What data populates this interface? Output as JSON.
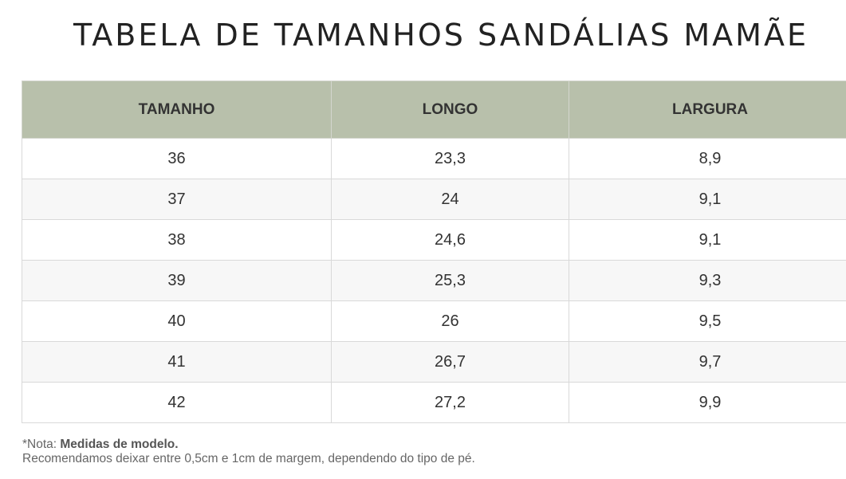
{
  "title": "TABELA DE TAMANHOS SANDÁLIAS MAMÃE",
  "table": {
    "headers": [
      "TAMANHO",
      "LONGO",
      "LARGURA"
    ],
    "rows": [
      [
        "36",
        "23,3",
        "8,9"
      ],
      [
        "37",
        "24",
        "9,1"
      ],
      [
        "38",
        "24,6",
        "9,1"
      ],
      [
        "39",
        "25,3",
        "9,3"
      ],
      [
        "40",
        "26",
        "9,5"
      ],
      [
        "41",
        "26,7",
        "9,7"
      ],
      [
        "42",
        "27,2",
        "9,9"
      ]
    ]
  },
  "note": {
    "prefix": "*Nota: ",
    "bold": "Medidas de modelo.",
    "line2": "Recomendamos deixar entre 0,5cm e 1cm de margem, dependendo do tipo de pé."
  },
  "colors": {
    "header_bg": "#b8c0ab",
    "stripe_bg": "#f7f7f7",
    "text": "#333333"
  }
}
